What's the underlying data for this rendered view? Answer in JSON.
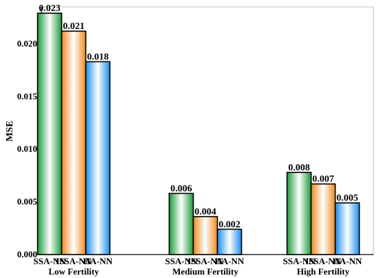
{
  "chart_data": {
    "type": "bar",
    "title": "",
    "xlabel": "",
    "ylabel": "MSE",
    "ylim": [
      0,
      0.0235
    ],
    "yticks": [
      0.0,
      0.005,
      0.01,
      0.015,
      0.02
    ],
    "ytick_labels": [
      "0.000",
      "0.005",
      "0.010",
      "0.015",
      "0.020"
    ],
    "grid": false,
    "legend": null,
    "categories": [
      "Low Fertility",
      "Medium Fertility",
      "High Fertility"
    ],
    "series_labels": [
      "SSA-NN",
      "ISSA-NN",
      "HA-NN"
    ],
    "series": [
      {
        "color": "#1a9a3a",
        "values": [
          0.0229,
          0.0058,
          0.0078
        ],
        "data_labels": [
          "0.023",
          "0.006",
          "0.008"
        ]
      },
      {
        "color": "#f08a1e",
        "values": [
          0.0212,
          0.0036,
          0.0067
        ],
        "data_labels": [
          "0.021",
          "0.004",
          "0.007"
        ]
      },
      {
        "color": "#1a8ef0",
        "values": [
          0.0183,
          0.0024,
          0.0049
        ],
        "data_labels": [
          "0.018",
          "0.002",
          "0.005"
        ]
      }
    ]
  }
}
